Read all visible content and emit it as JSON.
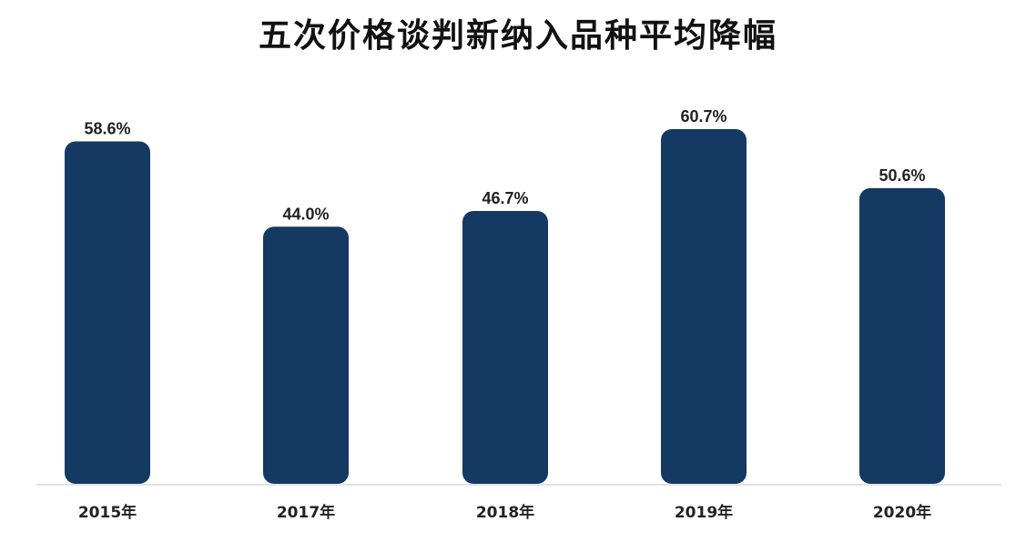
{
  "chart_data": {
    "type": "bar",
    "title": "五次价格谈判新纳入品种平均降幅",
    "categories": [
      "2015年",
      "2017年",
      "2018年",
      "2019年",
      "2020年"
    ],
    "values": [
      58.6,
      44.0,
      46.7,
      60.7,
      50.6
    ],
    "value_labels": [
      "58.6%",
      "44.0%",
      "46.7%",
      "60.7%",
      "50.6%"
    ],
    "xlabel": "",
    "ylabel": "",
    "ylim": [
      0,
      60.7
    ],
    "grid": false,
    "legend": "none",
    "colors": {
      "bar": "#143963",
      "axis": "#d9d9d9",
      "text": "#222222"
    }
  }
}
